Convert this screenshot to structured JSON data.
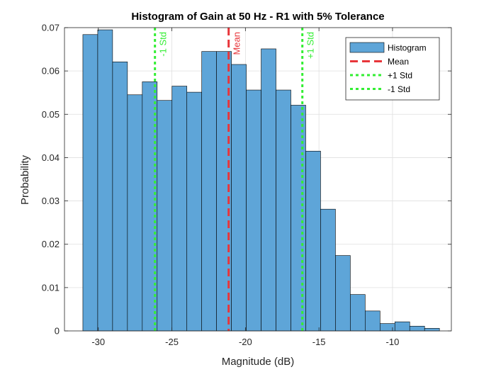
{
  "chart_data": {
    "type": "bar",
    "title": "Histogram of Gain at 50 Hz - R1 with 5% Tolerance",
    "xlabel": "Magnitude (dB)",
    "ylabel": "Probability",
    "xlim": [
      -32.3,
      -6.0
    ],
    "ylim": [
      0,
      0.07
    ],
    "xticks": [
      -30,
      -25,
      -20,
      -15,
      -10
    ],
    "xtick_labels": [
      "-30",
      "-25",
      "-20",
      "-15",
      "-10"
    ],
    "yticks": [
      0,
      0.01,
      0.02,
      0.03,
      0.04,
      0.05,
      0.06,
      0.07
    ],
    "ytick_labels": [
      "0",
      "0.01",
      "0.02",
      "0.03",
      "0.04",
      "0.05",
      "0.06",
      "0.07"
    ],
    "grid": true,
    "legend_position": "top-right",
    "bin_edges": [
      -31.05,
      -30.04,
      -29.03,
      -28.02,
      -27.01,
      -26.0,
      -24.99,
      -23.98,
      -22.97,
      -21.96,
      -20.95,
      -19.94,
      -18.93,
      -17.92,
      -16.91,
      -15.9,
      -14.89,
      -13.88,
      -12.87,
      -11.86,
      -10.85,
      -9.84,
      -8.83,
      -7.82,
      -6.81
    ],
    "values": [
      0.0684,
      0.0695,
      0.0621,
      0.0545,
      0.0575,
      0.0532,
      0.0565,
      0.0551,
      0.0645,
      0.0645,
      0.0615,
      0.0556,
      0.0651,
      0.0556,
      0.0521,
      0.0415,
      0.0281,
      0.0174,
      0.0084,
      0.0046,
      0.0017,
      0.0021,
      0.0011,
      0.0006
    ],
    "series": [
      {
        "name": "Histogram",
        "kind": "bar",
        "color": "#5ea5d8",
        "edge_color": "#000000"
      },
      {
        "name": "Mean",
        "kind": "vline",
        "x": -21.14,
        "color": "#e8353a",
        "style": "dashed"
      },
      {
        "name": "+1 Std",
        "kind": "vline",
        "x": -16.13,
        "color": "#33ee33",
        "style": "dotted"
      },
      {
        "name": "-1 Std",
        "kind": "vline",
        "x": -26.15,
        "color": "#33ee33",
        "style": "dotted"
      }
    ],
    "annotations": [
      {
        "text": "-1 Std",
        "x": -26.15,
        "color": "#33ee33"
      },
      {
        "text": "Mean",
        "x": -21.14,
        "color": "#e8353a"
      },
      {
        "text": "+1 Std",
        "x": -16.13,
        "color": "#33ee33"
      }
    ]
  }
}
